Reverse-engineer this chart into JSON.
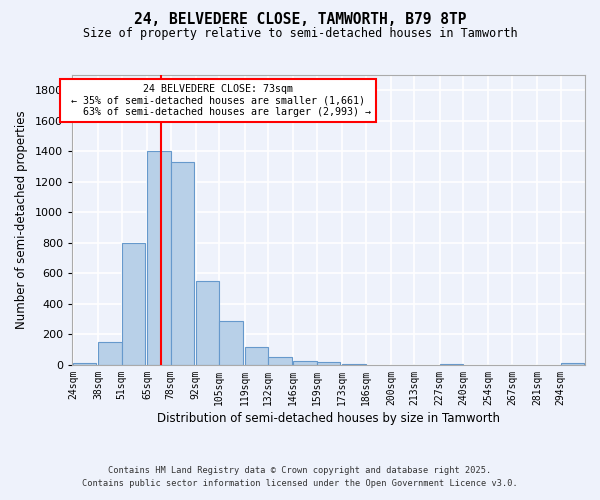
{
  "title_line1": "24, BELVEDERE CLOSE, TAMWORTH, B79 8TP",
  "title_line2": "Size of property relative to semi-detached houses in Tamworth",
  "xlabel": "Distribution of semi-detached houses by size in Tamworth",
  "ylabel": "Number of semi-detached properties",
  "categories": [
    "24sqm",
    "38sqm",
    "51sqm",
    "65sqm",
    "78sqm",
    "92sqm",
    "105sqm",
    "119sqm",
    "132sqm",
    "146sqm",
    "159sqm",
    "173sqm",
    "186sqm",
    "200sqm",
    "213sqm",
    "227sqm",
    "240sqm",
    "254sqm",
    "267sqm",
    "281sqm",
    "294sqm"
  ],
  "values": [
    15,
    150,
    800,
    1400,
    1330,
    550,
    290,
    120,
    50,
    25,
    20,
    5,
    0,
    0,
    0,
    5,
    0,
    0,
    0,
    0,
    10
  ],
  "bar_color": "#b8d0e8",
  "bar_edge_color": "#6699cc",
  "vline_x": 73,
  "vline_color": "red",
  "annotation_text_line1": "24 BELVEDERE CLOSE: 73sqm",
  "annotation_text_line2": "← 35% of semi-detached houses are smaller (1,661)",
  "annotation_text_line3": "   63% of semi-detached houses are larger (2,993) →",
  "annotation_box_color": "white",
  "annotation_box_edge_color": "red",
  "ylim": [
    0,
    1900
  ],
  "yticks": [
    0,
    200,
    400,
    600,
    800,
    1000,
    1200,
    1400,
    1600,
    1800
  ],
  "footnote_line1": "Contains HM Land Registry data © Crown copyright and database right 2025.",
  "footnote_line2": "Contains public sector information licensed under the Open Government Licence v3.0.",
  "bg_color": "#eef2fb",
  "grid_color": "white",
  "bin_width": 13
}
